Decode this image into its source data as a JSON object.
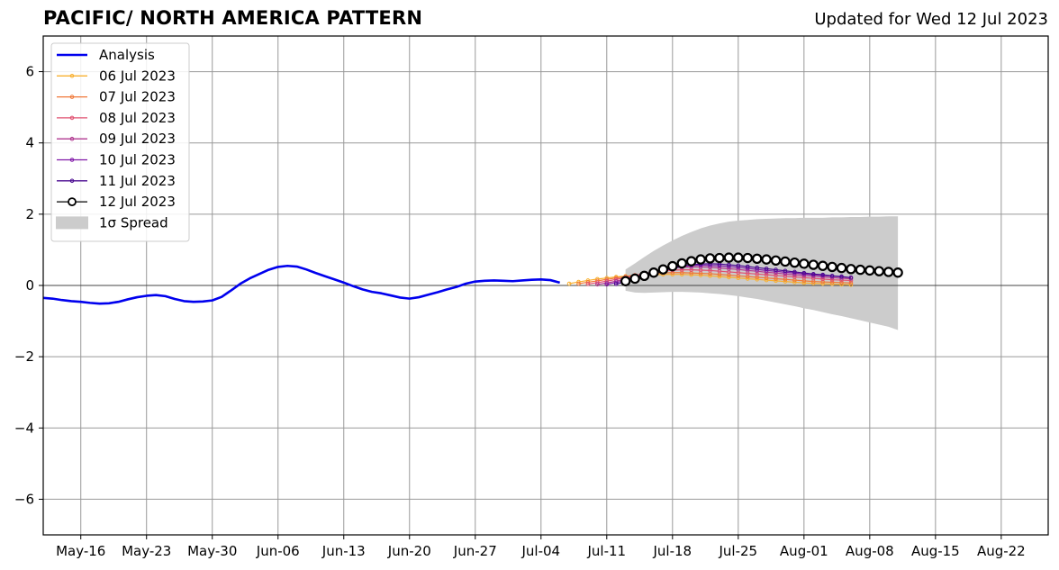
{
  "chart_data": {
    "type": "line",
    "title": "PACIFIC/ NORTH AMERICA PATTERN",
    "subtitle": "Updated for Wed 12 Jul 2023",
    "xlim": [
      "2023-05-12",
      "2023-08-27"
    ],
    "ylim": [
      -7,
      7
    ],
    "grid": true,
    "legend_position": "top-left",
    "x_ticks": [
      "May-16",
      "May-23",
      "May-30",
      "Jun-06",
      "Jun-13",
      "Jun-20",
      "Jun-27",
      "Jul-04",
      "Jul-11",
      "Jul-18",
      "Jul-25",
      "Aug-01",
      "Aug-08",
      "Aug-15",
      "Aug-22"
    ],
    "x_tick_dates": [
      "2023-05-16",
      "2023-05-23",
      "2023-05-30",
      "2023-06-06",
      "2023-06-13",
      "2023-06-20",
      "2023-06-27",
      "2023-07-04",
      "2023-07-11",
      "2023-07-18",
      "2023-07-25",
      "2023-08-01",
      "2023-08-08",
      "2023-08-15",
      "2023-08-22"
    ],
    "y_ticks": [
      -6,
      -4,
      -2,
      0,
      2,
      4,
      6
    ],
    "y_tick_labels": [
      "−6",
      "−4",
      "−2",
      "0",
      "2",
      "4",
      "6"
    ],
    "analysis": {
      "name": "Analysis",
      "color": "#0000ee",
      "dates": [
        "2023-05-12",
        "2023-05-13",
        "2023-05-14",
        "2023-05-15",
        "2023-05-16",
        "2023-05-17",
        "2023-05-18",
        "2023-05-19",
        "2023-05-20",
        "2023-05-21",
        "2023-05-22",
        "2023-05-23",
        "2023-05-24",
        "2023-05-25",
        "2023-05-26",
        "2023-05-27",
        "2023-05-28",
        "2023-05-29",
        "2023-05-30",
        "2023-05-31",
        "2023-06-01",
        "2023-06-02",
        "2023-06-03",
        "2023-06-04",
        "2023-06-05",
        "2023-06-06",
        "2023-06-07",
        "2023-06-08",
        "2023-06-09",
        "2023-06-10",
        "2023-06-11",
        "2023-06-12",
        "2023-06-13",
        "2023-06-14",
        "2023-06-15",
        "2023-06-16",
        "2023-06-17",
        "2023-06-18",
        "2023-06-19",
        "2023-06-20",
        "2023-06-21",
        "2023-06-22",
        "2023-06-23",
        "2023-06-24",
        "2023-06-25",
        "2023-06-26",
        "2023-06-27",
        "2023-06-28",
        "2023-06-29",
        "2023-06-30",
        "2023-07-01",
        "2023-07-02",
        "2023-07-03",
        "2023-07-04",
        "2023-07-05",
        "2023-07-06"
      ],
      "values": [
        -0.35,
        -0.37,
        -0.41,
        -0.44,
        -0.46,
        -0.49,
        -0.51,
        -0.5,
        -0.46,
        -0.39,
        -0.33,
        -0.29,
        -0.27,
        -0.3,
        -0.38,
        -0.44,
        -0.46,
        -0.45,
        -0.42,
        -0.32,
        -0.14,
        0.05,
        0.2,
        0.32,
        0.44,
        0.52,
        0.55,
        0.53,
        0.45,
        0.35,
        0.26,
        0.17,
        0.08,
        -0.02,
        -0.11,
        -0.18,
        -0.22,
        -0.28,
        -0.34,
        -0.37,
        -0.33,
        -0.26,
        -0.19,
        -0.11,
        -0.04,
        0.05,
        0.11,
        0.13,
        0.14,
        0.13,
        0.12,
        0.14,
        0.16,
        0.17,
        0.15,
        0.08
      ]
    },
    "series": [
      {
        "name": "06 Jul 2023",
        "color": "#f8b030",
        "start": "2023-07-07",
        "values": [
          0.05,
          0.1,
          0.14,
          0.18,
          0.21,
          0.24,
          0.26,
          0.28,
          0.29,
          0.3,
          0.31,
          0.31,
          0.31,
          0.3,
          0.29,
          0.27,
          0.25,
          0.23,
          0.21,
          0.19,
          0.17,
          0.15,
          0.13,
          0.11,
          0.09,
          0.07,
          0.06,
          0.05,
          0.04,
          0.03,
          0.02
        ]
      },
      {
        "name": "07 Jul 2023",
        "color": "#f07838",
        "start": "2023-07-08",
        "values": [
          0.05,
          0.09,
          0.13,
          0.17,
          0.21,
          0.25,
          0.29,
          0.32,
          0.34,
          0.35,
          0.36,
          0.36,
          0.35,
          0.34,
          0.33,
          0.31,
          0.29,
          0.27,
          0.25,
          0.23,
          0.21,
          0.19,
          0.17,
          0.15,
          0.13,
          0.11,
          0.1,
          0.09,
          0.08,
          0.07
        ]
      },
      {
        "name": "08 Jul 2023",
        "color": "#e05070",
        "start": "2023-07-09",
        "values": [
          0.04,
          0.08,
          0.12,
          0.17,
          0.22,
          0.28,
          0.33,
          0.38,
          0.41,
          0.43,
          0.44,
          0.44,
          0.43,
          0.42,
          0.4,
          0.38,
          0.36,
          0.34,
          0.32,
          0.3,
          0.28,
          0.26,
          0.24,
          0.22,
          0.2,
          0.18,
          0.16,
          0.15,
          0.14
        ]
      },
      {
        "name": "09 Jul 2023",
        "color": "#b03890",
        "start": "2023-07-10",
        "values": [
          0.03,
          0.07,
          0.12,
          0.18,
          0.25,
          0.32,
          0.39,
          0.45,
          0.49,
          0.51,
          0.52,
          0.52,
          0.51,
          0.49,
          0.47,
          0.45,
          0.42,
          0.4,
          0.37,
          0.35,
          0.32,
          0.3,
          0.28,
          0.26,
          0.24,
          0.22,
          0.2,
          0.19
        ]
      },
      {
        "name": "10 Jul 2023",
        "color": "#8018a8",
        "start": "2023-07-11",
        "values": [
          0.03,
          0.08,
          0.14,
          0.21,
          0.29,
          0.37,
          0.44,
          0.5,
          0.54,
          0.56,
          0.57,
          0.56,
          0.55,
          0.53,
          0.51,
          0.48,
          0.45,
          0.42,
          0.4,
          0.37,
          0.35,
          0.32,
          0.3,
          0.28,
          0.26,
          0.24,
          0.22
        ]
      },
      {
        "name": "11 Jul 2023",
        "color": "#4a0a90",
        "start": "2023-07-12",
        "values": [
          0.04,
          0.1,
          0.17,
          0.25,
          0.33,
          0.41,
          0.48,
          0.54,
          0.58,
          0.6,
          0.61,
          0.6,
          0.58,
          0.56,
          0.53,
          0.5,
          0.47,
          0.44,
          0.41,
          0.38,
          0.35,
          0.32,
          0.3,
          0.27,
          0.25,
          0.22
        ]
      },
      {
        "name": "12 Jul 2023",
        "color": "#000000",
        "start": "2023-07-13",
        "values": [
          0.12,
          0.19,
          0.27,
          0.36,
          0.45,
          0.54,
          0.62,
          0.68,
          0.73,
          0.76,
          0.77,
          0.78,
          0.78,
          0.77,
          0.75,
          0.73,
          0.7,
          0.67,
          0.64,
          0.61,
          0.58,
          0.55,
          0.52,
          0.49,
          0.46,
          0.44,
          0.42,
          0.4,
          0.38,
          0.36
        ]
      }
    ],
    "spread": {
      "name": "1σ Spread",
      "color": "#cccccc",
      "start": "2023-07-13",
      "upper": [
        0.45,
        0.62,
        0.8,
        0.97,
        1.12,
        1.26,
        1.39,
        1.5,
        1.6,
        1.68,
        1.74,
        1.79,
        1.82,
        1.84,
        1.86,
        1.87,
        1.88,
        1.89,
        1.89,
        1.9,
        1.9,
        1.9,
        1.91,
        1.91,
        1.92,
        1.92,
        1.93,
        1.93,
        1.94,
        1.94
      ],
      "lower": [
        -0.15,
        -0.2,
        -0.21,
        -0.2,
        -0.19,
        -0.18,
        -0.18,
        -0.19,
        -0.2,
        -0.22,
        -0.24,
        -0.27,
        -0.3,
        -0.34,
        -0.38,
        -0.43,
        -0.48,
        -0.53,
        -0.58,
        -0.64,
        -0.69,
        -0.75,
        -0.81,
        -0.86,
        -0.92,
        -0.98,
        -1.04,
        -1.1,
        -1.16,
        -1.25
      ]
    },
    "legend_labels": [
      "Analysis",
      "06 Jul 2023",
      "07 Jul 2023",
      "08 Jul 2023",
      "09 Jul 2023",
      "10 Jul 2023",
      "11 Jul 2023",
      "12 Jul 2023",
      "1σ Spread"
    ]
  }
}
